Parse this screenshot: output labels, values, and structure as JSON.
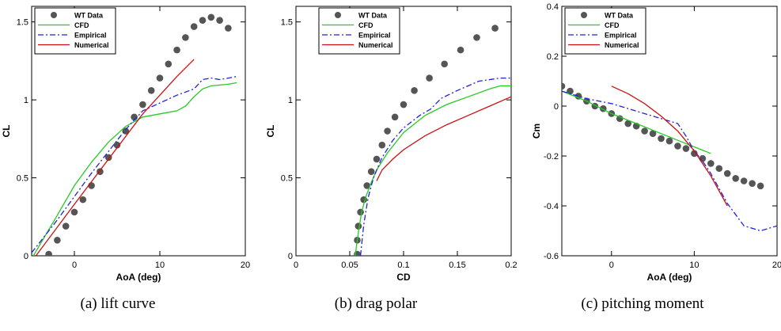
{
  "colors": {
    "wt": "#555555",
    "cfd": "#22cc22",
    "empirical": "#2222dd",
    "numerical": "#cc1111"
  },
  "chart_data": [
    {
      "type": "line",
      "caption": "(a) lift curve",
      "xlabel": "AoA (deg)",
      "ylabel": "CL",
      "xlim": [
        -5,
        20
      ],
      "ylim": [
        0,
        1.6
      ],
      "xticks": [
        0,
        10,
        20
      ],
      "yticks": [
        0,
        0.5,
        1,
        1.5
      ],
      "xtick_labels": [
        "0",
        "10",
        "20"
      ],
      "ytick_labels": [
        "0",
        "0.5",
        "1",
        "1.5"
      ],
      "legend_position": "top-left",
      "series": [
        {
          "name": "WT Data",
          "style": "markers",
          "x": [
            -3,
            -2,
            -1,
            0,
            1,
            2,
            3,
            4,
            5,
            6,
            7,
            8,
            9,
            10,
            11,
            12,
            13,
            14,
            15,
            16,
            17,
            18
          ],
          "y": [
            0.01,
            0.1,
            0.19,
            0.28,
            0.36,
            0.45,
            0.54,
            0.63,
            0.71,
            0.8,
            0.89,
            0.97,
            1.06,
            1.14,
            1.23,
            1.32,
            1.4,
            1.47,
            1.51,
            1.53,
            1.51,
            1.46
          ]
        },
        {
          "name": "CFD",
          "style": "solid",
          "x": [
            -4.8,
            -2,
            0,
            2,
            4,
            6,
            8,
            10,
            12,
            13,
            14,
            15,
            16,
            18,
            19
          ],
          "y": [
            0,
            0.26,
            0.45,
            0.6,
            0.73,
            0.83,
            0.89,
            0.91,
            0.93,
            0.96,
            1.02,
            1.07,
            1.09,
            1.1,
            1.11
          ]
        },
        {
          "name": "Empirical",
          "style": "dashdot",
          "x": [
            -5,
            -2,
            0,
            2,
            4,
            6,
            8,
            10,
            12,
            14,
            15,
            16,
            17,
            18,
            19
          ],
          "y": [
            0.02,
            0.23,
            0.38,
            0.53,
            0.67,
            0.81,
            0.93,
            0.98,
            1.03,
            1.07,
            1.13,
            1.14,
            1.13,
            1.14,
            1.15
          ]
        },
        {
          "name": "Numerical",
          "style": "solid",
          "x": [
            -4.5,
            0,
            4,
            8,
            10,
            12,
            14
          ],
          "y": [
            0,
            0.33,
            0.62,
            0.91,
            1.03,
            1.15,
            1.26
          ]
        }
      ]
    },
    {
      "type": "line",
      "caption": "(b) drag polar",
      "xlabel": "CD",
      "ylabel": "CL",
      "xlim": [
        0,
        0.2
      ],
      "ylim": [
        0,
        1.6
      ],
      "xticks": [
        0,
        0.05,
        0.1,
        0.15,
        0.2
      ],
      "yticks": [
        0,
        0.5,
        1,
        1.5
      ],
      "xtick_labels": [
        "0",
        "0.05",
        "0.1",
        "0.15",
        "0.2"
      ],
      "ytick_labels": [
        "0",
        "0.5",
        "1",
        "1.5"
      ],
      "legend_position": "top-right",
      "series": [
        {
          "name": "WT Data",
          "style": "markers",
          "x": [
            0.057,
            0.057,
            0.058,
            0.06,
            0.063,
            0.066,
            0.07,
            0.075,
            0.08,
            0.085,
            0.092,
            0.1,
            0.11,
            0.124,
            0.138,
            0.153,
            0.168,
            0.185
          ],
          "y": [
            0.01,
            0.1,
            0.19,
            0.28,
            0.36,
            0.45,
            0.54,
            0.62,
            0.71,
            0.8,
            0.89,
            0.97,
            1.06,
            1.14,
            1.23,
            1.32,
            1.4,
            1.46
          ]
        },
        {
          "name": "CFD",
          "style": "solid",
          "x": [
            0.055,
            0.058,
            0.061,
            0.065,
            0.07,
            0.075,
            0.085,
            0.1,
            0.12,
            0.14,
            0.16,
            0.18,
            0.19,
            0.2
          ],
          "y": [
            0,
            0.15,
            0.28,
            0.38,
            0.47,
            0.55,
            0.66,
            0.79,
            0.9,
            0.97,
            1.02,
            1.07,
            1.09,
            1.09
          ]
        },
        {
          "name": "Empirical",
          "style": "dashdot",
          "x": [
            0.06,
            0.063,
            0.067,
            0.072,
            0.08,
            0.09,
            0.1,
            0.115,
            0.125,
            0.135,
            0.15,
            0.17,
            0.19,
            0.2
          ],
          "y": [
            0,
            0.2,
            0.37,
            0.5,
            0.63,
            0.74,
            0.82,
            0.9,
            0.94,
            1.01,
            1.06,
            1.12,
            1.14,
            1.14
          ]
        },
        {
          "name": "Numerical",
          "style": "solid",
          "x": [
            0.075,
            0.08,
            0.09,
            0.1,
            0.12,
            0.14,
            0.16,
            0.18,
            0.2
          ],
          "y": [
            0.48,
            0.55,
            0.62,
            0.68,
            0.77,
            0.84,
            0.9,
            0.96,
            1.02
          ]
        }
      ]
    },
    {
      "type": "line",
      "caption": "(c) pitching moment",
      "xlabel": "AoA (deg)",
      "ylabel": "Cm",
      "xlim": [
        -6,
        20
      ],
      "ylim": [
        -0.6,
        0.4
      ],
      "xticks": [
        0,
        10,
        20
      ],
      "yticks": [
        -0.6,
        -0.4,
        -0.2,
        0,
        0.2,
        0.4
      ],
      "xtick_labels": [
        "0",
        "10",
        "20"
      ],
      "ytick_labels": [
        "-0.6",
        "-0.4",
        "-0.2",
        "0",
        "0.2",
        "0.4"
      ],
      "legend_position": "top-left",
      "series": [
        {
          "name": "WT Data",
          "style": "markers",
          "x": [
            -6,
            -5,
            -4,
            -3,
            -2,
            -1,
            0,
            1,
            2,
            3,
            4,
            5,
            6,
            7,
            8,
            9,
            10,
            11,
            12,
            13,
            14,
            15,
            16,
            17,
            18
          ],
          "y": [
            0.08,
            0.06,
            0.04,
            0.02,
            0.0,
            -0.01,
            -0.03,
            -0.05,
            -0.07,
            -0.08,
            -0.1,
            -0.11,
            -0.13,
            -0.14,
            -0.16,
            -0.17,
            -0.19,
            -0.21,
            -0.23,
            -0.25,
            -0.27,
            -0.29,
            -0.3,
            -0.31,
            -0.32
          ]
        },
        {
          "name": "CFD",
          "style": "solid",
          "x": [
            -6,
            -3,
            0,
            3,
            6,
            9,
            12
          ],
          "y": [
            0.06,
            0.02,
            -0.03,
            -0.07,
            -0.11,
            -0.15,
            -0.19
          ]
        },
        {
          "name": "Empirical",
          "style": "dashdot",
          "x": [
            -6,
            -3,
            0,
            3,
            6,
            8,
            9,
            10,
            11,
            12,
            14,
            16,
            18,
            20
          ],
          "y": [
            0.06,
            0.03,
            0.01,
            -0.02,
            -0.05,
            -0.07,
            -0.12,
            -0.18,
            -0.22,
            -0.27,
            -0.39,
            -0.48,
            -0.5,
            -0.48
          ]
        },
        {
          "name": "Numerical",
          "style": "solid",
          "x": [
            0,
            2,
            4,
            6,
            8,
            10,
            12,
            14
          ],
          "y": [
            0.08,
            0.05,
            0.01,
            -0.04,
            -0.1,
            -0.18,
            -0.28,
            -0.4
          ]
        }
      ]
    }
  ]
}
